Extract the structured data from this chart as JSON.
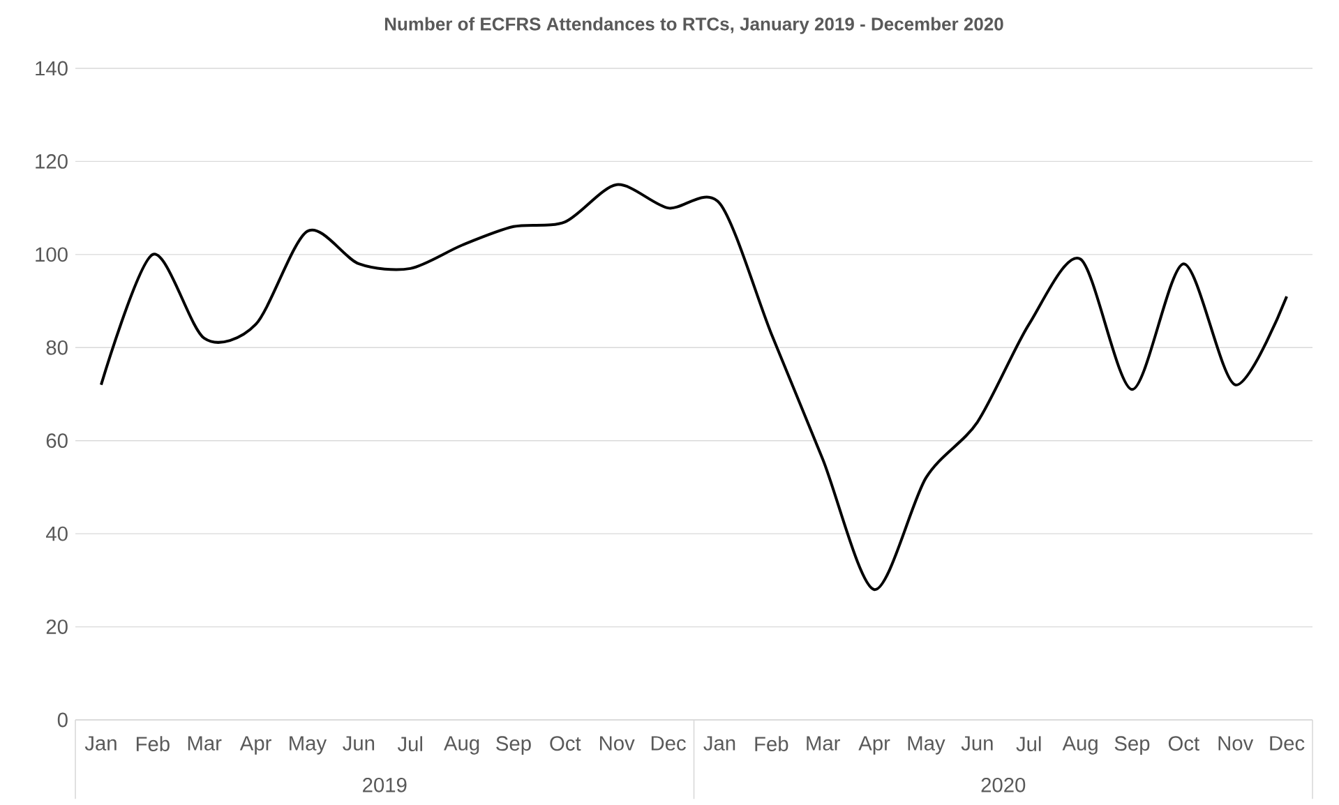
{
  "chart_data": {
    "type": "line",
    "title": "Number of ECFRS Attendances to RTCs, January 2019 - December 2020",
    "categories": [
      "Jan",
      "Feb",
      "Mar",
      "Apr",
      "May",
      "Jun",
      "Jul",
      "Aug",
      "Sep",
      "Oct",
      "Nov",
      "Dec",
      "Jan",
      "Feb",
      "Mar",
      "Apr",
      "May",
      "Jun",
      "Jul",
      "Aug",
      "Sep",
      "Oct",
      "Nov",
      "Dec"
    ],
    "series": [
      {
        "color": "#000000",
        "values": [
          72,
          100,
          82,
          85,
          105,
          98,
          97,
          102,
          106,
          107,
          115,
          110,
          111,
          83,
          56,
          28,
          52,
          64,
          85,
          99,
          71,
          98,
          72,
          91
        ]
      }
    ],
    "annotations": [
      "2019",
      "2020"
    ],
    "ylim": [
      0,
      140
    ],
    "yticks": [
      0,
      20,
      40,
      60,
      80,
      100,
      120,
      140
    ],
    "grid": "y",
    "marker": "none",
    "line_style": "solid"
  }
}
